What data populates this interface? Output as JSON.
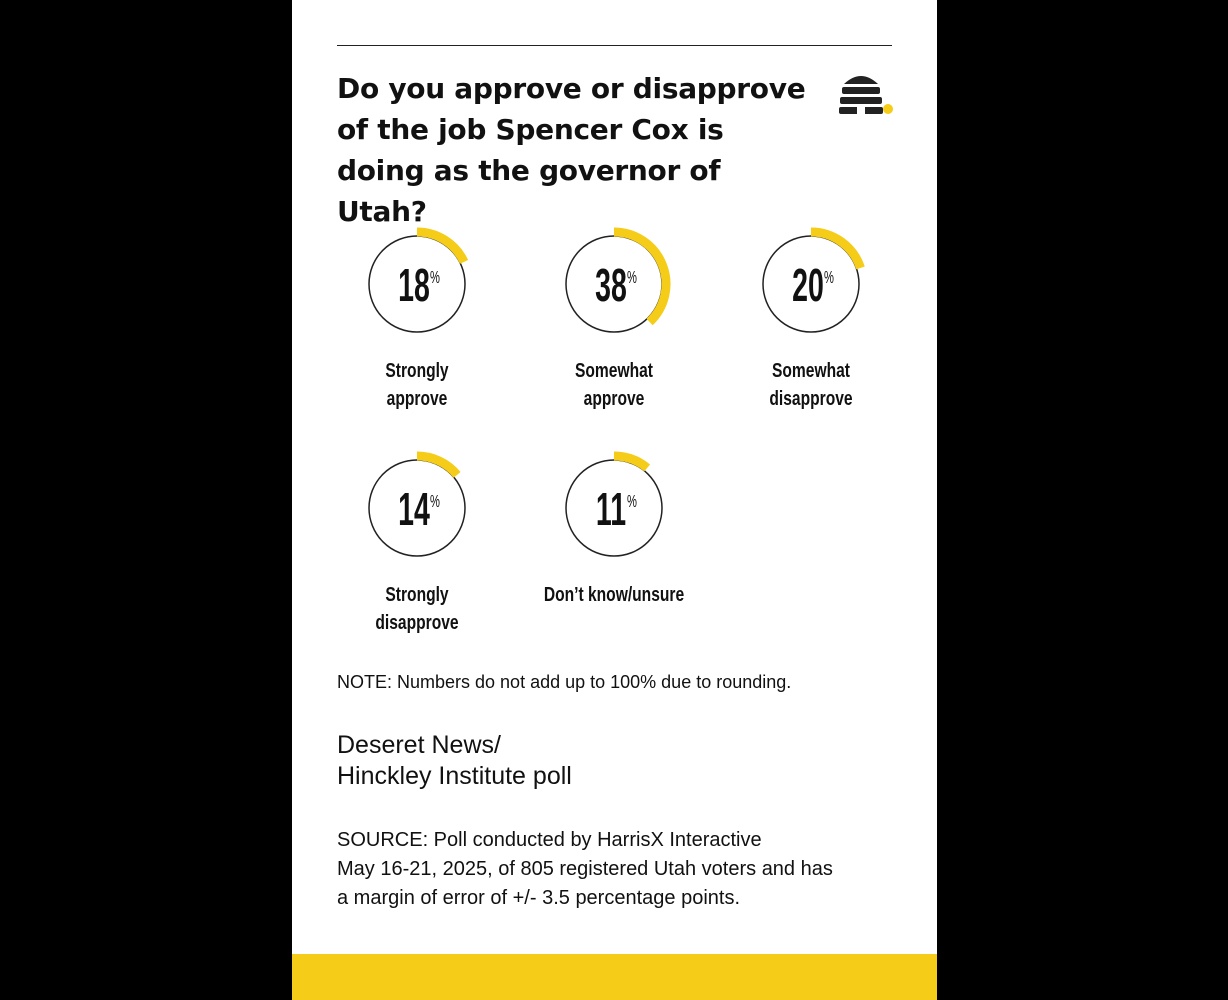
{
  "header": {
    "title": "Do you approve or disapprove of the job Spencer Cox is doing as the governor of Utah?"
  },
  "colors": {
    "accent": "#f5cc17",
    "ink": "#111111",
    "ring": "#222222"
  },
  "icons": {
    "logo": "beehive-icon"
  },
  "chart_data": {
    "type": "pie",
    "unit": "%",
    "categories": [
      "Strongly approve",
      "Somewhat approve",
      "Somewhat disapprove",
      "Strongly disapprove",
      "Don’t know/unsure"
    ],
    "label_lines": [
      [
        "Strongly",
        "approve"
      ],
      [
        "Somewhat",
        "approve"
      ],
      [
        "Somewhat",
        "disapprove"
      ],
      [
        "Strongly",
        "disapprove"
      ],
      [
        "Don’t know/unsure"
      ]
    ],
    "values": [
      18,
      38,
      20,
      14,
      11
    ]
  },
  "footer": {
    "note": "NOTE: Numbers do not add up to 100% due to rounding.",
    "credit_line1": "Deseret News/",
    "credit_line2": "Hinckley Institute poll",
    "source_line1": "SOURCE: Poll conducted by HarrisX Interactive",
    "source_line2": "May 16-21, 2025, of 805 registered Utah voters and has",
    "source_line3": "a margin of error of +/- 3.5 percentage points."
  }
}
